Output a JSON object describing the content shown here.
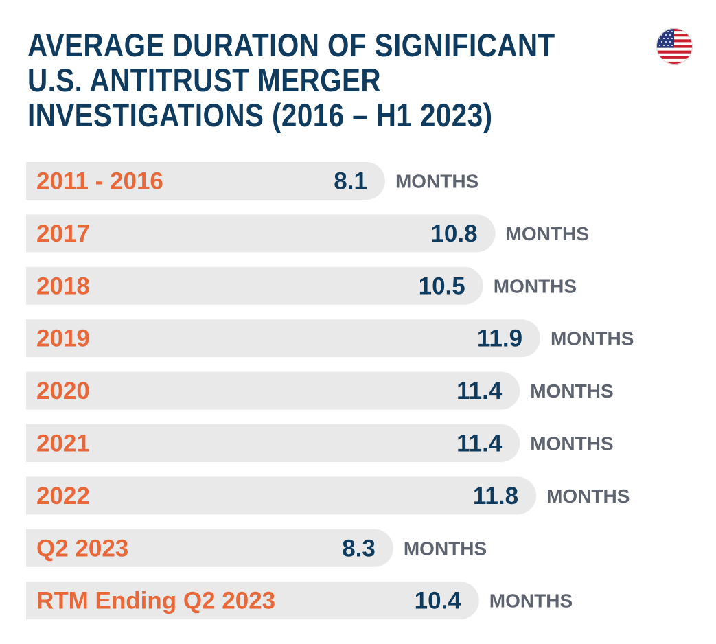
{
  "title_lines": [
    "AVERAGE DURATION OF SIGNIFICANT",
    "U.S. ANTITRUST MERGER",
    "INVESTIGATIONS (2016 – H1 2023)"
  ],
  "flag_icon": "us-flag-icon",
  "colors": {
    "title": "#0f3b5f",
    "category": "#e8683a",
    "value": "#0f3b5f",
    "unit": "#5d6470",
    "bar": "#e9e9ea"
  },
  "chart_data": {
    "type": "bar",
    "orientation": "horizontal",
    "title": "AVERAGE DURATION OF SIGNIFICANT U.S. ANTITRUST MERGER INVESTIGATIONS (2016 – H1 2023)",
    "categories": [
      "2011 - 2016",
      "2017",
      "2018",
      "2019",
      "2020",
      "2021",
      "2022",
      "Q2 2023",
      "RTM Ending Q2 2023"
    ],
    "values": [
      8.1,
      10.8,
      10.5,
      11.9,
      11.4,
      11.4,
      11.8,
      8.3,
      10.4
    ],
    "value_labels": [
      "8.1",
      "10.8",
      "10.5",
      "11.9",
      "11.4",
      "11.4",
      "11.8",
      "8.3",
      "10.4"
    ],
    "unit": "MONTHS",
    "grid": false,
    "legend": "none"
  }
}
